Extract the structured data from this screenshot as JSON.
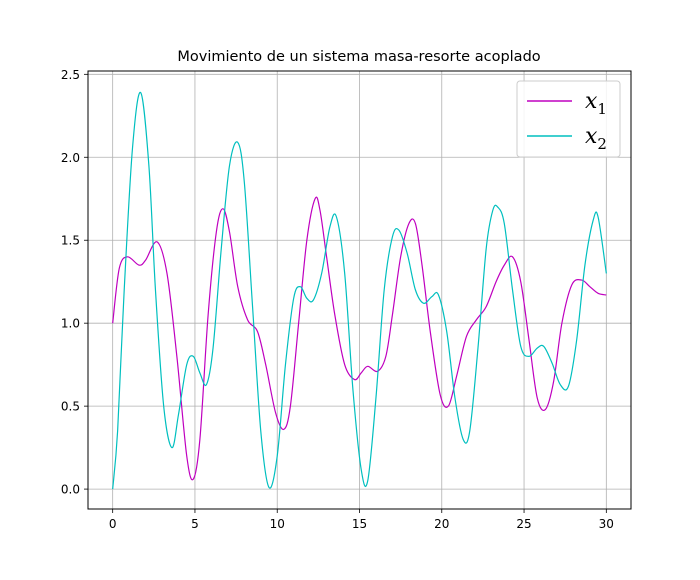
{
  "chart_data": {
    "type": "line",
    "title": "Movimiento de un sistema masa-resorte acoplado",
    "xlabel": "",
    "ylabel": "",
    "xlim": [
      -1.5,
      31.5
    ],
    "ylim": [
      -0.12,
      2.52
    ],
    "xticks": [
      0,
      5,
      10,
      15,
      20,
      25,
      30
    ],
    "xtick_labels": [
      "0",
      "5",
      "10",
      "15",
      "20",
      "25",
      "30"
    ],
    "yticks": [
      0.0,
      0.5,
      1.0,
      1.5,
      2.0,
      2.5
    ],
    "ytick_labels": [
      "0.0",
      "0.5",
      "1.0",
      "1.5",
      "2.0",
      "2.5"
    ],
    "grid": true,
    "legend": "top-right",
    "series": [
      {
        "name": "x",
        "subscript": "1",
        "color": "#bf00bf",
        "x": [
          0,
          0.4,
          0.9,
          1.6,
          2.0,
          2.7,
          3.3,
          3.9,
          4.5,
          4.9,
          5.3,
          5.8,
          6.3,
          6.7,
          7.1,
          7.6,
          8.2,
          8.8,
          9.3,
          9.9,
          10.4,
          10.8,
          11.3,
          11.8,
          12.3,
          12.6,
          13.0,
          13.5,
          14.1,
          14.7,
          15.1,
          15.5,
          16.1,
          16.6,
          17.0,
          17.5,
          18.0,
          18.4,
          18.8,
          19.3,
          19.9,
          20.4,
          20.9,
          21.5,
          22.1,
          22.7,
          23.3,
          23.8,
          24.3,
          24.8,
          25.3,
          25.8,
          26.3,
          26.8,
          27.3,
          27.9,
          28.5,
          29.0,
          29.5,
          30.0
        ],
        "y": [
          1.0,
          1.33,
          1.4,
          1.35,
          1.38,
          1.49,
          1.3,
          0.8,
          0.2,
          0.06,
          0.3,
          1.05,
          1.55,
          1.69,
          1.55,
          1.22,
          1.02,
          0.95,
          0.75,
          0.46,
          0.36,
          0.5,
          1.0,
          1.5,
          1.75,
          1.68,
          1.4,
          1.05,
          0.75,
          0.66,
          0.7,
          0.74,
          0.71,
          0.8,
          1.05,
          1.4,
          1.6,
          1.6,
          1.35,
          0.95,
          0.57,
          0.5,
          0.68,
          0.92,
          1.02,
          1.1,
          1.25,
          1.35,
          1.4,
          1.25,
          0.9,
          0.55,
          0.48,
          0.65,
          1.0,
          1.23,
          1.26,
          1.22,
          1.18,
          1.17
        ]
      },
      {
        "name": "x",
        "subscript": "2",
        "color": "#00bfbf",
        "x": [
          0,
          0.3,
          0.7,
          1.2,
          1.7,
          2.2,
          2.6,
          3.1,
          3.6,
          4.0,
          4.5,
          4.9,
          5.3,
          5.7,
          6.1,
          6.6,
          7.1,
          7.6,
          8.0,
          8.5,
          9.0,
          9.5,
          10.0,
          10.5,
          11.0,
          11.4,
          11.8,
          12.2,
          12.7,
          13.2,
          13.6,
          14.1,
          14.6,
          15.1,
          15.5,
          16.0,
          16.5,
          17.0,
          17.4,
          17.9,
          18.4,
          18.9,
          19.4,
          19.8,
          20.3,
          20.8,
          21.3,
          21.7,
          22.2,
          22.7,
          23.1,
          23.4,
          23.8,
          24.3,
          24.8,
          25.3,
          25.8,
          26.2,
          26.7,
          27.2,
          27.7,
          28.2,
          28.7,
          29.2,
          29.5,
          30.0
        ],
        "y": [
          0.0,
          0.35,
          1.2,
          2.05,
          2.39,
          1.95,
          1.2,
          0.5,
          0.25,
          0.45,
          0.75,
          0.8,
          0.7,
          0.63,
          0.85,
          1.45,
          1.95,
          2.09,
          1.85,
          1.1,
          0.35,
          0.01,
          0.2,
          0.75,
          1.15,
          1.22,
          1.15,
          1.14,
          1.3,
          1.58,
          1.64,
          1.3,
          0.6,
          0.12,
          0.05,
          0.55,
          1.2,
          1.52,
          1.56,
          1.42,
          1.2,
          1.12,
          1.16,
          1.17,
          0.95,
          0.55,
          0.3,
          0.35,
          0.85,
          1.45,
          1.68,
          1.7,
          1.6,
          1.2,
          0.86,
          0.8,
          0.85,
          0.86,
          0.76,
          0.63,
          0.62,
          0.9,
          1.35,
          1.62,
          1.64,
          1.3
        ]
      }
    ]
  }
}
